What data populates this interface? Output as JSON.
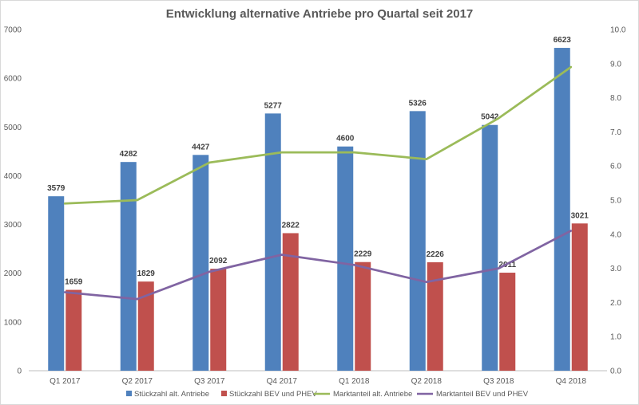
{
  "chart_data": {
    "type": "bar",
    "title": "Entwicklung alternative Antriebe pro Quartal seit 2017",
    "categories": [
      "Q1 2017",
      "Q2 2017",
      "Q3 2017",
      "Q4 2017",
      "Q1 2018",
      "Q2 2018",
      "Q3 2018",
      "Q4 2018"
    ],
    "series": [
      {
        "name": "Stückzahl alt. Antriebe",
        "type": "bar",
        "axis": "left",
        "color": "#4f81bd",
        "values": [
          3579,
          4282,
          4427,
          5277,
          4600,
          5326,
          5042,
          6623
        ],
        "labels": [
          "3579",
          "4282",
          "4427",
          "5277",
          "4600",
          "5326",
          "5042",
          "6623"
        ]
      },
      {
        "name": "Stückzahl BEV und PHEV",
        "type": "bar",
        "axis": "left",
        "color": "#c0504d",
        "values": [
          1659,
          1829,
          2092,
          2822,
          2229,
          2226,
          2011,
          3021
        ],
        "labels": [
          "1659",
          "1829",
          "2092",
          "2822",
          "2229",
          "2226",
          "2011",
          "3021"
        ]
      },
      {
        "name": "Marktanteil alt. Antriebe",
        "type": "line",
        "axis": "right",
        "color": "#9bbb59",
        "values": [
          4.9,
          5.0,
          6.1,
          6.4,
          6.4,
          6.2,
          7.4,
          8.9
        ]
      },
      {
        "name": "Marktanteil BEV und PHEV",
        "type": "line",
        "axis": "right",
        "color": "#8064a2",
        "values": [
          2.3,
          2.1,
          2.9,
          3.4,
          3.1,
          2.6,
          3.0,
          4.1
        ]
      }
    ],
    "y_left": {
      "range": [
        0,
        7000
      ],
      "ticks": [
        "0",
        "1000",
        "2000",
        "3000",
        "4000",
        "5000",
        "6000",
        "7000"
      ]
    },
    "y_right": {
      "range": [
        0,
        10
      ],
      "ticks": [
        "0.0",
        "1.0",
        "2.0",
        "3.0",
        "4.0",
        "5.0",
        "6.0",
        "7.0",
        "8.0",
        "9.0",
        "10.0"
      ]
    },
    "grid": false,
    "legend_position": "bottom"
  }
}
